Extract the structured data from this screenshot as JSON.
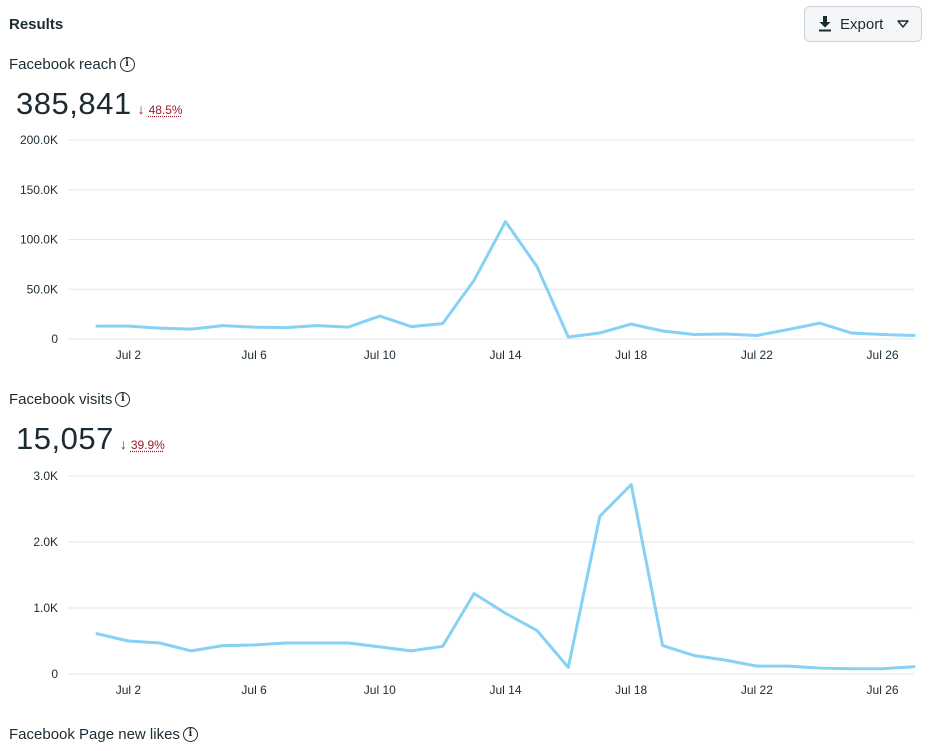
{
  "header": {
    "title": "Results",
    "export_label": "Export"
  },
  "sections": [
    {
      "title": "Facebook reach",
      "value": "385,841",
      "change": "48.5%",
      "direction": "down"
    },
    {
      "title": "Facebook visits",
      "value": "15,057",
      "change": "39.9%",
      "direction": "down"
    },
    {
      "title": "Facebook Page new likes"
    }
  ],
  "colors": {
    "line": "#87d1f5",
    "grid": "#e4e6eb",
    "negative": "#9b1c2c",
    "text": "#1c2b33"
  },
  "icons": {
    "export": "download-icon",
    "export_menu": "triangle-down-icon",
    "info": "info-icon",
    "change": "arrow-down-icon"
  },
  "chart_data": [
    {
      "type": "line",
      "title": "Facebook reach",
      "x_ticks": [
        "Jul 2",
        "Jul 6",
        "Jul 10",
        "Jul 14",
        "Jul 18",
        "Jul 22",
        "Jul 26"
      ],
      "x_tick_days": [
        2,
        6,
        10,
        14,
        18,
        22,
        26
      ],
      "y_ticks": [
        "0",
        "50.0K",
        "100.0K",
        "150.0K",
        "200.0K"
      ],
      "ylim": [
        0,
        200000
      ],
      "grid": true,
      "series": [
        {
          "x": [
            1,
            2,
            3,
            4,
            5,
            6,
            7,
            8,
            9,
            10,
            11,
            12,
            13,
            14,
            15,
            16,
            17,
            18,
            19,
            20,
            21,
            22,
            23,
            24,
            25,
            26,
            27
          ],
          "values": [
            13000,
            13000,
            11000,
            10000,
            13500,
            12000,
            11500,
            13500,
            12000,
            23000,
            12500,
            15500,
            59000,
            118000,
            73000,
            2000,
            6000,
            15000,
            8000,
            4500,
            5000,
            3500,
            9500,
            16000,
            6000,
            4500,
            3500
          ]
        }
      ]
    },
    {
      "type": "line",
      "title": "Facebook visits",
      "x_ticks": [
        "Jul 2",
        "Jul 6",
        "Jul 10",
        "Jul 14",
        "Jul 18",
        "Jul 22",
        "Jul 26"
      ],
      "x_tick_days": [
        2,
        6,
        10,
        14,
        18,
        22,
        26
      ],
      "y_ticks": [
        "0",
        "1.0K",
        "2.0K",
        "3.0K"
      ],
      "ylim": [
        0,
        3000
      ],
      "grid": true,
      "series": [
        {
          "x": [
            1,
            2,
            3,
            4,
            5,
            6,
            7,
            8,
            9,
            10,
            11,
            12,
            13,
            14,
            15,
            16,
            17,
            18,
            19,
            20,
            21,
            22,
            23,
            24,
            25,
            26,
            27
          ],
          "values": [
            610,
            500,
            470,
            350,
            430,
            440,
            470,
            470,
            470,
            410,
            350,
            420,
            1220,
            920,
            660,
            100,
            2390,
            2870,
            430,
            280,
            210,
            120,
            120,
            90,
            80,
            80,
            110
          ]
        }
      ]
    }
  ]
}
